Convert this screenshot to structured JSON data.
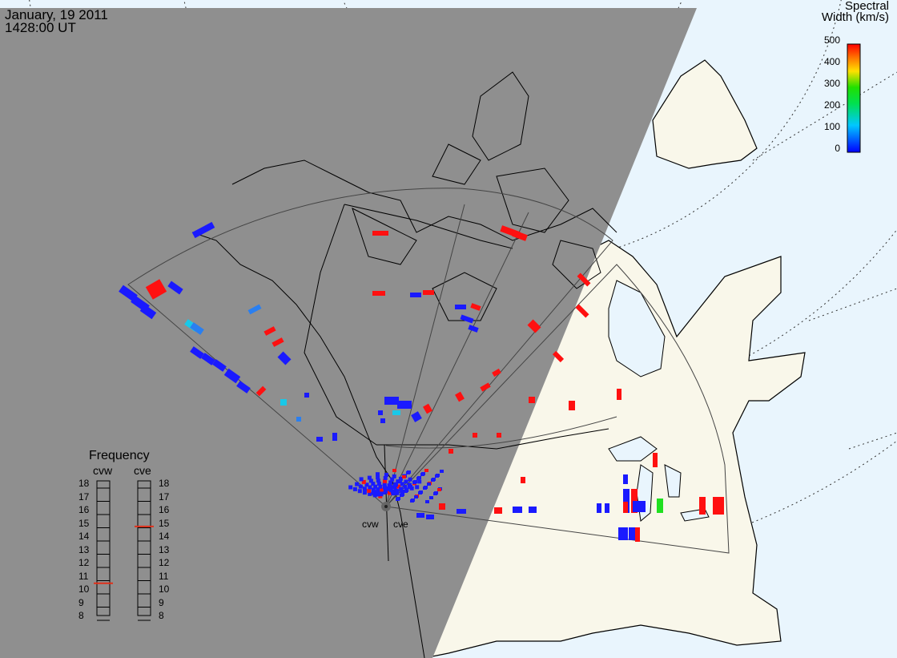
{
  "header": {
    "date": "January, 19 2011",
    "time": "1428:00 UT"
  },
  "colorbar": {
    "title_line1": "Spectral",
    "title_line2": "Width (km/s)",
    "ticks": [
      "500",
      "400",
      "300",
      "200",
      "100",
      "0"
    ],
    "min": 0,
    "max": 500
  },
  "frequency_panel": {
    "title": "Frequency",
    "radars": [
      {
        "name": "cvw",
        "value": 10.8
      },
      {
        "name": "cve",
        "value": 15.1
      }
    ],
    "scale": [
      "18",
      "17",
      "16",
      "15",
      "14",
      "13",
      "12",
      "11",
      "10",
      "9",
      "8"
    ],
    "marker_color": "#e0301a"
  },
  "sites": [
    "cvw",
    "cve"
  ],
  "colors": {
    "night": "#8f8f8f",
    "day_land": "#f9f7ea",
    "ocean": "#e9f5fd",
    "blue": "#1a1aff",
    "red": "#ff1010",
    "cyan": "#19c8e8",
    "lightblue": "#2a7ff0",
    "green": "#20e020"
  }
}
